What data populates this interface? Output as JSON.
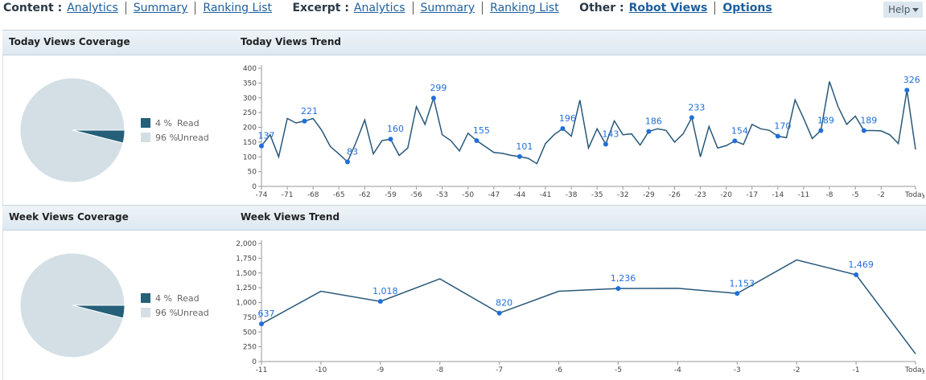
{
  "nav": {
    "groups": [
      {
        "label": "Content :",
        "links": [
          "Analytics",
          "Summary",
          "Ranking List"
        ]
      },
      {
        "label": "Excerpt :",
        "links": [
          "Analytics",
          "Summary",
          "Ranking List"
        ]
      },
      {
        "label": "Other :",
        "links": [
          "Robot Views",
          "Options"
        ]
      }
    ]
  },
  "help": "Help",
  "chart_data": [
    {
      "type": "pie",
      "title": "Today Views Coverage",
      "categories": [
        "Read",
        "Unread"
      ],
      "values": [
        4,
        96
      ],
      "value_labels": [
        "4 %",
        "96 %"
      ],
      "colors": [
        "#255f78",
        "#d3dfe5"
      ]
    },
    {
      "type": "line",
      "title": "Today Views Trend",
      "categories": [
        "-74",
        null,
        null,
        "-71",
        null,
        null,
        "-68",
        null,
        null,
        "-65",
        null,
        null,
        "-62",
        null,
        null,
        "-59",
        null,
        null,
        "-56",
        null,
        null,
        "-53",
        null,
        null,
        "-50",
        null,
        null,
        "-47",
        null,
        null,
        "-44",
        null,
        null,
        "-41",
        null,
        null,
        "-38",
        null,
        null,
        "-35",
        null,
        null,
        "-32",
        null,
        null,
        "-29",
        null,
        null,
        "-26",
        null,
        null,
        "-23",
        null,
        null,
        "-20",
        null,
        null,
        "-17",
        null,
        null,
        "-14",
        null,
        null,
        "-11",
        null,
        null,
        "-8",
        null,
        null,
        "-5",
        null,
        null,
        "-2",
        null,
        null,
        null,
        "Today"
      ],
      "values": [
        137,
        175,
        100,
        230,
        215,
        221,
        230,
        190,
        135,
        110,
        83,
        150,
        225,
        110,
        155,
        160,
        105,
        130,
        270,
        210,
        299,
        175,
        155,
        120,
        180,
        155,
        135,
        115,
        112,
        105,
        101,
        95,
        77,
        145,
        175,
        196,
        170,
        292,
        130,
        195,
        143,
        222,
        175,
        178,
        140,
        186,
        195,
        190,
        150,
        178,
        233,
        100,
        203,
        130,
        138,
        154,
        142,
        210,
        195,
        190,
        170,
        165,
        293,
        230,
        162,
        189,
        355,
        270,
        210,
        238,
        189,
        189,
        188,
        175,
        145,
        326,
        125
      ],
      "value_labels": [
        "137",
        null,
        null,
        null,
        null,
        "221",
        null,
        null,
        null,
        null,
        "83",
        null,
        null,
        null,
        null,
        "160",
        null,
        null,
        null,
        null,
        "299",
        null,
        null,
        null,
        null,
        "155",
        null,
        null,
        null,
        null,
        "101",
        null,
        null,
        null,
        null,
        "196",
        null,
        null,
        null,
        null,
        "143",
        null,
        null,
        null,
        null,
        "186",
        null,
        null,
        null,
        null,
        "233",
        null,
        null,
        null,
        null,
        "154",
        null,
        null,
        null,
        null,
        "170",
        null,
        null,
        null,
        null,
        "189",
        null,
        null,
        null,
        null,
        "189",
        null,
        null,
        null,
        null,
        "326",
        null
      ],
      "color": "#28587a",
      "marker_color": "#1f6fd9",
      "ylim": [
        0,
        400
      ],
      "yticks": [
        0,
        50,
        100,
        150,
        200,
        250,
        300,
        350,
        400
      ]
    },
    {
      "type": "pie",
      "title": "Week Views Coverage",
      "categories": [
        "Read",
        "Unread"
      ],
      "values": [
        4,
        96
      ],
      "value_labels": [
        "4 %",
        "96 %"
      ],
      "colors": [
        "#255f78",
        "#d3dfe5"
      ]
    },
    {
      "type": "line",
      "title": "Week Views Trend",
      "categories": [
        "-11",
        "-10",
        "-9",
        "-8",
        "-7",
        "-6",
        "-5",
        "-4",
        "-3",
        "-2",
        "-1",
        "Today"
      ],
      "values": [
        637,
        1190,
        1018,
        1400,
        820,
        1190,
        1236,
        1240,
        1153,
        1720,
        1469,
        130
      ],
      "value_labels": [
        "637",
        null,
        "1,018",
        null,
        "820",
        null,
        "1,236",
        null,
        "1,153",
        null,
        "1,469",
        null
      ],
      "color": "#28587a",
      "marker_color": "#1f6fd9",
      "ylim": [
        0,
        2000
      ],
      "yticks": [
        0,
        250,
        500,
        750,
        {
          "value": 1000,
          "label": "1,000"
        },
        {
          "value": 1250,
          "label": "1,250"
        },
        {
          "value": 1500,
          "label": "1,500"
        },
        {
          "value": 1750,
          "label": "1,750"
        },
        {
          "value": 2000,
          "label": "2,000"
        }
      ]
    }
  ]
}
